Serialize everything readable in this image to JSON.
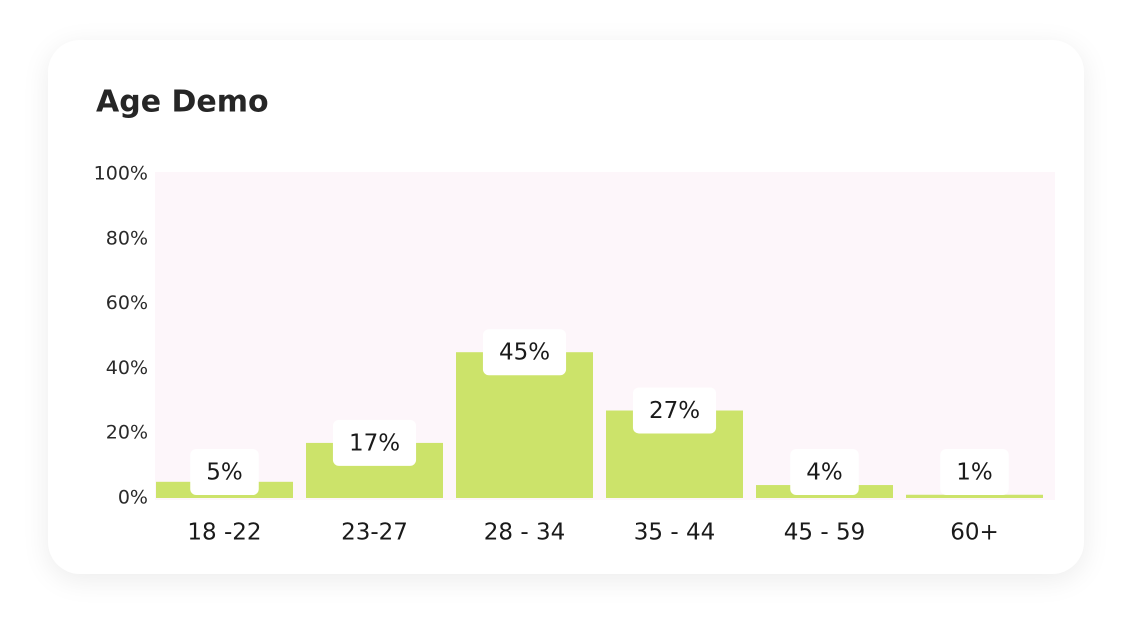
{
  "chart_data": {
    "type": "bar",
    "title": "Age Demo",
    "categories": [
      "18 -22",
      "23-27",
      "28 - 34",
      "35 - 44",
      "45 - 59",
      "60+"
    ],
    "values": [
      5,
      17,
      45,
      27,
      4,
      1
    ],
    "value_labels": [
      "5%",
      "17%",
      "45%",
      "27%",
      "4%",
      "1%"
    ],
    "color": "#cce36a",
    "ylim": [
      0,
      100
    ],
    "yticks": [
      {
        "value": 0,
        "label": "0%"
      },
      {
        "value": 20,
        "label": "20%"
      },
      {
        "value": 40,
        "label": "40%"
      },
      {
        "value": 60,
        "label": "60%"
      },
      {
        "value": 80,
        "label": "80%"
      },
      {
        "value": 100,
        "label": "100%"
      }
    ]
  }
}
